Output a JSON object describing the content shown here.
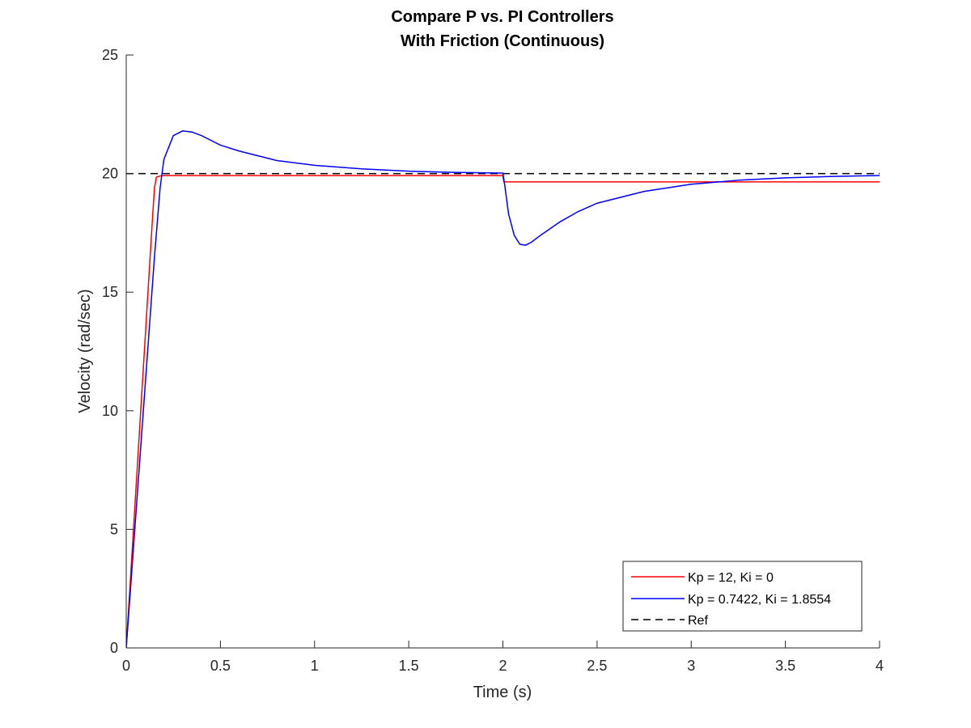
{
  "chart_data": {
    "type": "line",
    "title": [
      "Compare P vs. PI Controllers",
      "With Friction (Continuous)"
    ],
    "xlabel": "Time (s)",
    "ylabel": "Velocity (rad/sec)",
    "xlim": [
      0,
      4
    ],
    "ylim": [
      0,
      25
    ],
    "xticks": [
      0,
      0.5,
      1,
      1.5,
      2,
      2.5,
      3,
      3.5,
      4
    ],
    "xtick_labels": [
      "0",
      "0.5",
      "1",
      "1.5",
      "2",
      "2.5",
      "3",
      "3.5",
      "4"
    ],
    "yticks": [
      0,
      5,
      10,
      15,
      20,
      25
    ],
    "ytick_labels": [
      "0",
      "5",
      "10",
      "15",
      "20",
      "25"
    ],
    "grid": false,
    "legend_position": "bottom-right",
    "series": [
      {
        "name": "Kp = 12, Ki = 0",
        "color": "#ff0000",
        "dash": "solid",
        "x": [
          0,
          0.02,
          0.04,
          0.06,
          0.08,
          0.1,
          0.12,
          0.14,
          0.15,
          0.16,
          0.18,
          0.2,
          0.5,
          1.0,
          1.5,
          2.0,
          2.005,
          2.02,
          2.1,
          2.5,
          3.0,
          3.5,
          4.0
        ],
        "y": [
          0,
          2.6,
          5.2,
          7.8,
          10.4,
          13.0,
          15.6,
          18.2,
          19.4,
          19.85,
          19.9,
          19.92,
          19.92,
          19.92,
          19.92,
          19.92,
          19.65,
          19.65,
          19.65,
          19.65,
          19.65,
          19.65,
          19.65
        ]
      },
      {
        "name": "Kp = 0.7422, Ki = 1.8554",
        "color": "#0000ff",
        "dash": "solid",
        "x": [
          0,
          0.05,
          0.1,
          0.15,
          0.18,
          0.2,
          0.25,
          0.3,
          0.35,
          0.4,
          0.5,
          0.6,
          0.8,
          1.0,
          1.25,
          1.5,
          1.75,
          2.0,
          2.01,
          2.03,
          2.06,
          2.09,
          2.12,
          2.15,
          2.2,
          2.3,
          2.4,
          2.5,
          2.75,
          3.0,
          3.25,
          3.5,
          3.75,
          4.0
        ],
        "y": [
          0,
          5.5,
          11.0,
          16.5,
          19.4,
          20.6,
          21.6,
          21.8,
          21.75,
          21.6,
          21.2,
          20.95,
          20.55,
          20.35,
          20.2,
          20.1,
          20.05,
          20.02,
          19.5,
          18.3,
          17.4,
          17.02,
          16.98,
          17.1,
          17.4,
          17.95,
          18.4,
          18.75,
          19.25,
          19.55,
          19.72,
          19.82,
          19.88,
          19.92
        ]
      },
      {
        "name": "Ref",
        "color": "#000000",
        "dash": "dashed",
        "x": [
          0,
          4
        ],
        "y": [
          20,
          20
        ]
      }
    ]
  }
}
